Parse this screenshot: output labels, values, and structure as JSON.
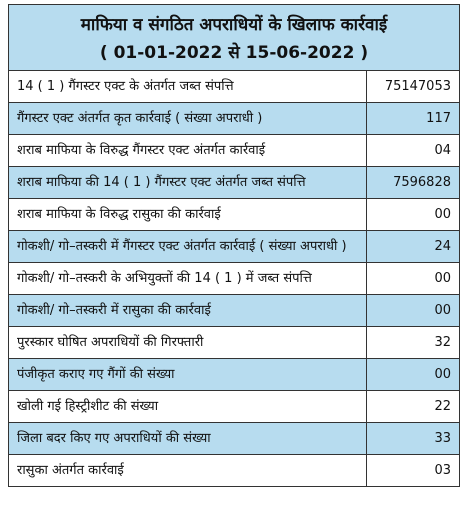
{
  "header": {
    "title_lines": [
      "माफिया व संगठित अपराधियों के खिलाफ कार्रवाई",
      "( 01-01-2022 से 15-06-2022 )"
    ]
  },
  "table": {
    "rows": [
      [
        "14 ( 1 ) गैंगस्टर एक्ट के अंतर्गत जब्त संपत्ति",
        "75147053"
      ],
      [
        "गैंगस्टर एक्ट अंतर्गत कृत कार्रवाई ( संख्या अपराधी )",
        "117"
      ],
      [
        "शराब माफिया के विरुद्ध गैंगस्टर एक्ट अंतर्गत कार्रवाई",
        "04"
      ],
      [
        "शराब माफिया की 14 ( 1 ) गैंगस्टर एक्ट अंतर्गत जब्त संपत्ति",
        "7596828"
      ],
      [
        "शराब माफिया के विरुद्ध रासुका की कार्रवाई",
        "00"
      ],
      [
        "गोकशी/ गो–तस्करी में गैंगस्टर एक्ट अंतर्गत कार्रवाई ( संख्या अपराधी )",
        "24"
      ],
      [
        "गोकशी/ गो–तस्करी के अभियुक्तों की 14 ( 1 ) में जब्त संपत्ति",
        "00"
      ],
      [
        "गोकशी/ गो–तस्करी में रासुका की कार्रवाई",
        "00"
      ],
      [
        "पुरस्कार घोषित अपराधियों की गिरफ्तारी",
        "32"
      ],
      [
        "पंजीकृत कराए गए गैंगों की संख्या",
        "00"
      ],
      [
        "खोली गई हिस्ट्रीशीट की संख्या",
        "22"
      ],
      [
        "जिला बदर किए गए अपराधियों की संख्या",
        "33"
      ],
      [
        "रासुका अंतर्गत कार्रवाई",
        "03"
      ]
    ]
  }
}
